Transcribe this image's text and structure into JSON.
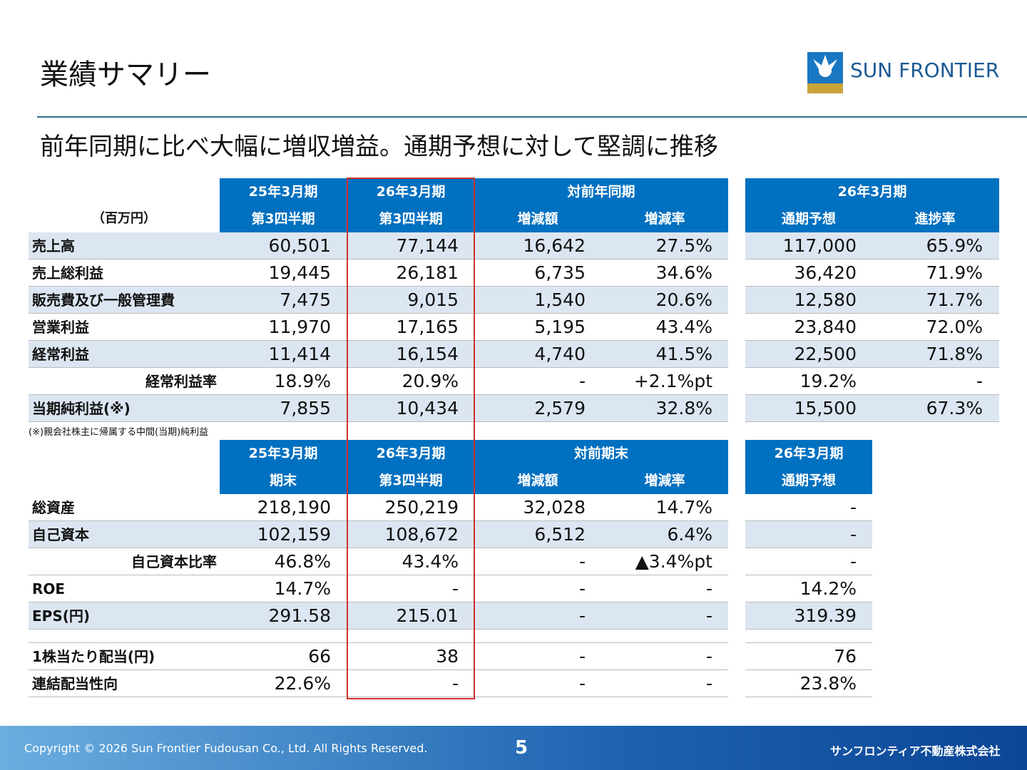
{
  "header": {
    "title": "業績サマリー",
    "logo": "SUN FRONTIER",
    "subtitle": "前年同期に比べ大幅に増収増益。通期予想に対して堅調に推移"
  },
  "table1": {
    "unit": "（百万円）",
    "columns": [
      [
        "25年3月期",
        "第3四半期"
      ],
      [
        "26年3月期",
        "第3四半期"
      ]
    ],
    "groups": [
      {
        "title": "対前年同期",
        "columns": [
          "増減額",
          "増減率"
        ]
      },
      {
        "title": "26年3月期",
        "columns": [
          "通期予想",
          "進捗率"
        ]
      }
    ],
    "rows": [
      [
        "売上高",
        "60,501",
        "77,144",
        "16,642",
        "27.5%",
        "117,000",
        "65.9%"
      ],
      [
        "売上総利益",
        "19,445",
        "26,181",
        "6,735",
        "34.6%",
        "36,420",
        "71.9%"
      ],
      [
        "販売費及び一般管理費",
        "7,475",
        "9,015",
        "1,540",
        "20.6%",
        "12,580",
        "71.7%"
      ],
      [
        "営業利益",
        "11,970",
        "17,165",
        "5,195",
        "43.4%",
        "23,840",
        "72.0%"
      ],
      [
        "経常利益",
        "11,414",
        "16,154",
        "4,740",
        "41.5%",
        "22,500",
        "71.8%"
      ],
      [
        "経常利益率",
        "18.9%",
        "20.9%",
        "-",
        "+2.1%pt",
        "19.2%",
        "-"
      ],
      [
        "当期純利益(※)",
        "7,855",
        "10,434",
        "2,579",
        "32.8%",
        "15,500",
        "67.3%"
      ]
    ],
    "note": "(※)親会社株主に帰属する中間(当期)純利益"
  },
  "table2": {
    "columns": [
      [
        "25年3月期",
        "期末"
      ],
      [
        "26年3月期",
        "第3四半期"
      ]
    ],
    "groups": [
      {
        "title": "対前期末",
        "columns": [
          "増減額",
          "増減率"
        ]
      },
      {
        "title": "26年3月期",
        "columns": [
          "通期予想"
        ]
      }
    ],
    "rows": [
      [
        "総資産",
        "218,190",
        "250,219",
        "32,028",
        "14.7%",
        "-"
      ],
      [
        "自己資本",
        "102,159",
        "108,672",
        "6,512",
        "6.4%",
        "-"
      ],
      [
        "自己資本比率",
        "46.8%",
        "43.4%",
        "-",
        "▲3.4%pt",
        "-"
      ],
      [
        "ROE",
        "14.7%",
        "-",
        "-",
        "-",
        "14.2%"
      ],
      [
        "EPS(円)",
        "291.58",
        "215.01",
        "-",
        "-",
        "319.39"
      ],
      [
        "1株当たり配当(円)",
        "66",
        "38",
        "-",
        "-",
        "76"
      ],
      [
        "連結配当性向",
        "22.6%",
        "-",
        "-",
        "-",
        "23.8%"
      ]
    ]
  },
  "footer": {
    "copyright": "Copyright © 2026 Sun Frontier Fudousan Co., Ltd. All Rights Reserved.",
    "page": "5",
    "company": "サンフロンティア不動産株式会社"
  }
}
